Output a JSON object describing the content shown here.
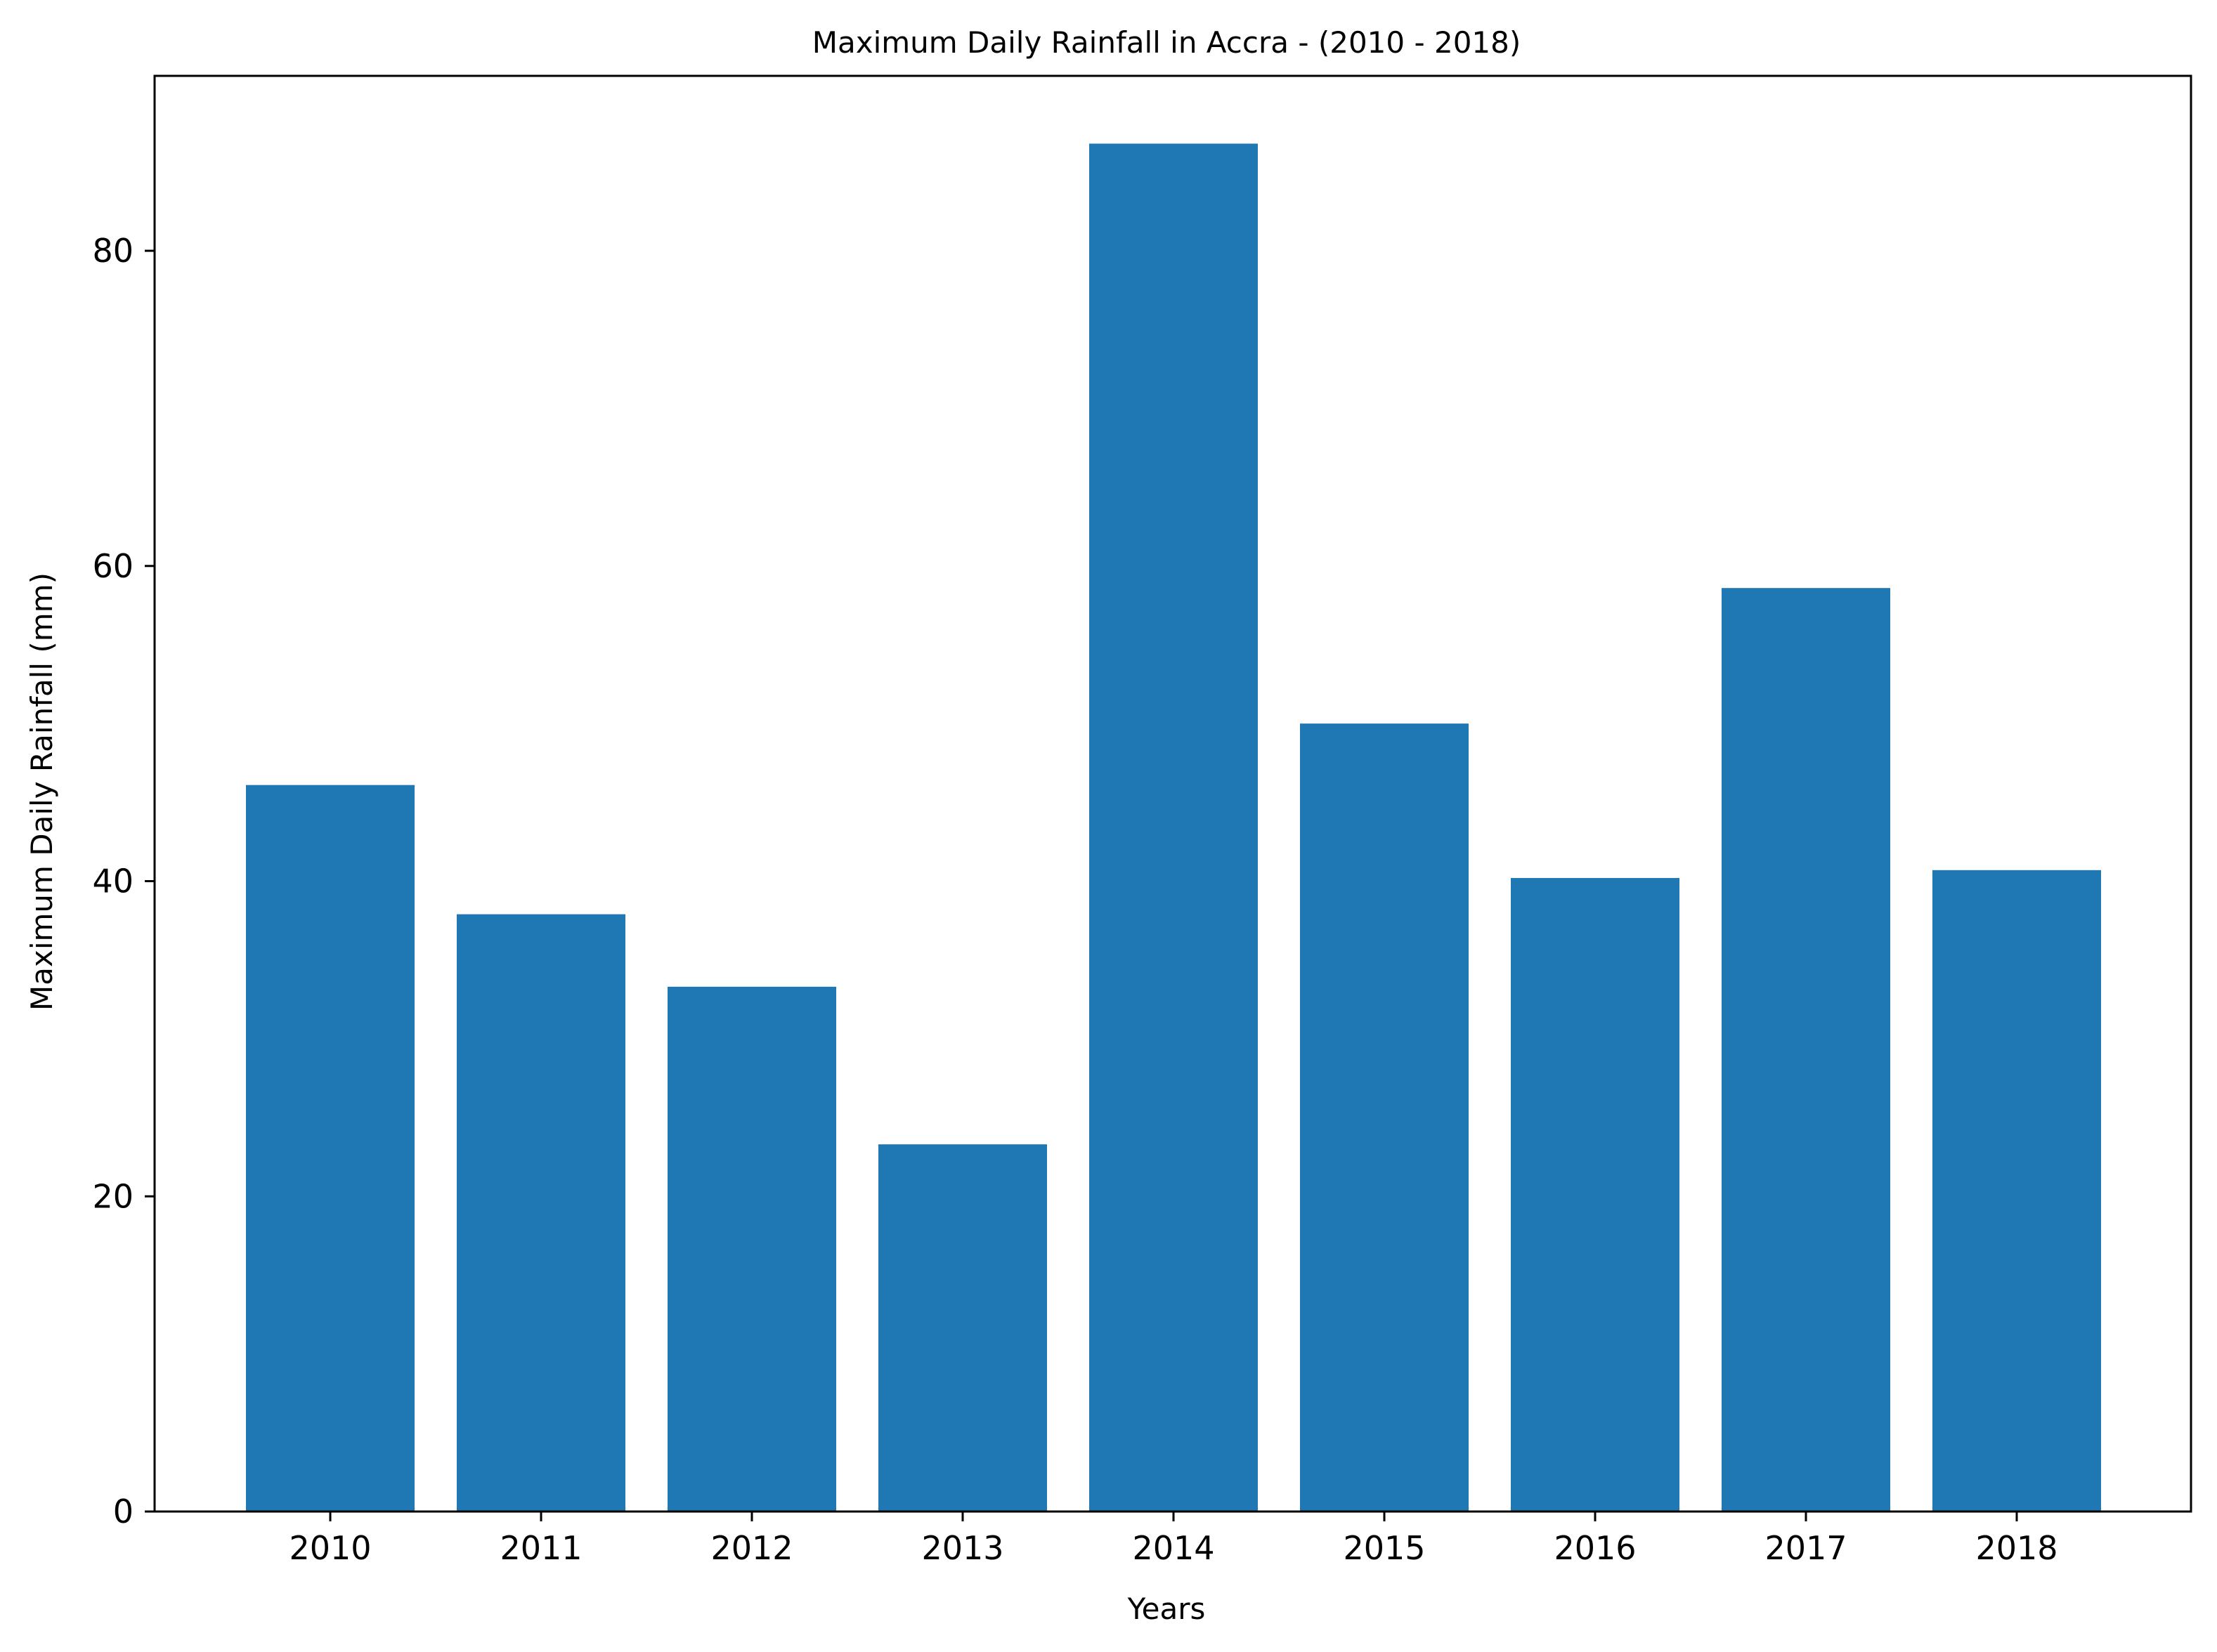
{
  "chart_data": {
    "type": "bar",
    "title": "Maximum Daily Rainfall in Accra - (2010 - 2018)",
    "xlabel": "Years",
    "ylabel": "Maximum Daily Rainfall (mm)",
    "categories": [
      "2010",
      "2011",
      "2012",
      "2013",
      "2014",
      "2015",
      "2016",
      "2017",
      "2018"
    ],
    "values": [
      46.1,
      37.9,
      33.3,
      23.3,
      86.8,
      50.0,
      40.2,
      58.6,
      40.7
    ],
    "ylim": [
      0,
      91.1
    ],
    "yticks": [
      0,
      20,
      40,
      60,
      80
    ],
    "grid": false,
    "legend": "none",
    "bar_color": "#1f77b4"
  }
}
